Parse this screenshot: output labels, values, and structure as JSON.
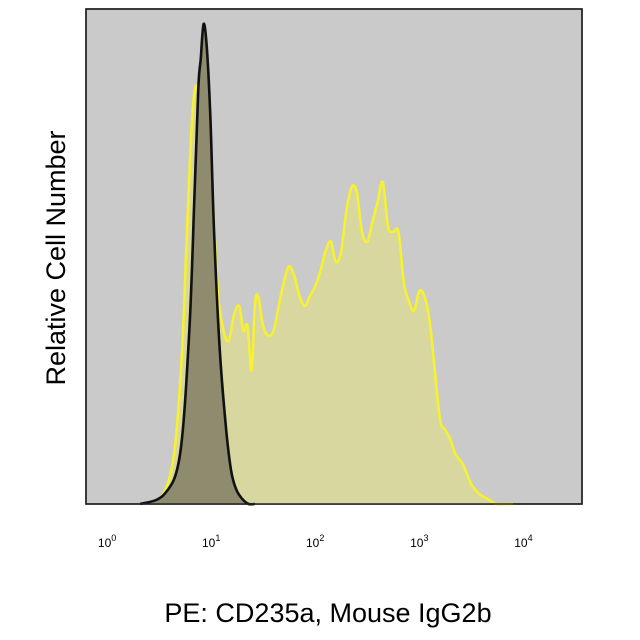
{
  "chart_data": {
    "type": "area",
    "xlabel": "PE: CD235a, Mouse IgG2b",
    "ylabel": "Relative Cell Number",
    "x_scale": "log",
    "xlim": [
      0.6,
      35000
    ],
    "ylim": [
      0,
      1.0
    ],
    "grid": false,
    "legend": "none",
    "x_ticks": [
      {
        "base": "10",
        "exp": "0",
        "value": 1
      },
      {
        "base": "10",
        "exp": "1",
        "value": 10
      },
      {
        "base": "10",
        "exp": "2",
        "value": 100
      },
      {
        "base": "10",
        "exp": "3",
        "value": 1000
      },
      {
        "base": "10",
        "exp": "4",
        "value": 10000
      }
    ],
    "series": [
      {
        "color": "#f6f132",
        "fill": "#d8d79f",
        "x": [
          2.3,
          3.3,
          4.2,
          5.0,
          5.6,
          6.2,
          6.7,
          7.2,
          7.8,
          8.5,
          9.1,
          10.0,
          11.2,
          12.6,
          14.1,
          15.8,
          17.8,
          19.5,
          21.4,
          23.4,
          25.1,
          27.0,
          30.2,
          33.9,
          38.0,
          42.7,
          47.9,
          53.7,
          60.3,
          67.6,
          75.9,
          85.1,
          95.5,
          107,
          120,
          135,
          151,
          170,
          190,
          214,
          240,
          269,
          302,
          339,
          380,
          427,
          479,
          537,
          603,
          676,
          759,
          851,
          955,
          1072,
          1202,
          1349,
          1514,
          1698,
          1905,
          2138,
          2512,
          3020,
          3631,
          4365,
          5248,
          6310,
          7586
        ],
        "y": [
          0.0,
          0.02,
          0.1,
          0.3,
          0.55,
          0.76,
          0.84,
          0.83,
          0.76,
          0.8,
          0.78,
          0.6,
          0.42,
          0.35,
          0.33,
          0.38,
          0.4,
          0.35,
          0.36,
          0.27,
          0.4,
          0.42,
          0.36,
          0.34,
          0.35,
          0.4,
          0.45,
          0.48,
          0.46,
          0.42,
          0.4,
          0.42,
          0.44,
          0.47,
          0.51,
          0.53,
          0.49,
          0.51,
          0.59,
          0.64,
          0.63,
          0.55,
          0.53,
          0.57,
          0.61,
          0.65,
          0.56,
          0.55,
          0.55,
          0.45,
          0.41,
          0.39,
          0.43,
          0.42,
          0.37,
          0.27,
          0.17,
          0.15,
          0.13,
          0.1,
          0.08,
          0.04,
          0.02,
          0.01,
          0.0,
          0.0,
          0.0
        ]
      },
      {
        "color": "#111111",
        "fill": "#8e8b6e",
        "x": [
          2.0,
          3.4,
          4.8,
          5.9,
          6.6,
          7.2,
          7.6,
          8.1,
          8.7,
          9.4,
          10.2,
          11.5,
          13.2,
          14.8,
          16.6,
          19.1,
          21.9,
          25.1
        ],
        "y": [
          0.0,
          0.02,
          0.1,
          0.35,
          0.62,
          0.84,
          0.9,
          0.97,
          0.92,
          0.78,
          0.55,
          0.32,
          0.16,
          0.07,
          0.03,
          0.01,
          0.0,
          0.0
        ]
      }
    ]
  }
}
